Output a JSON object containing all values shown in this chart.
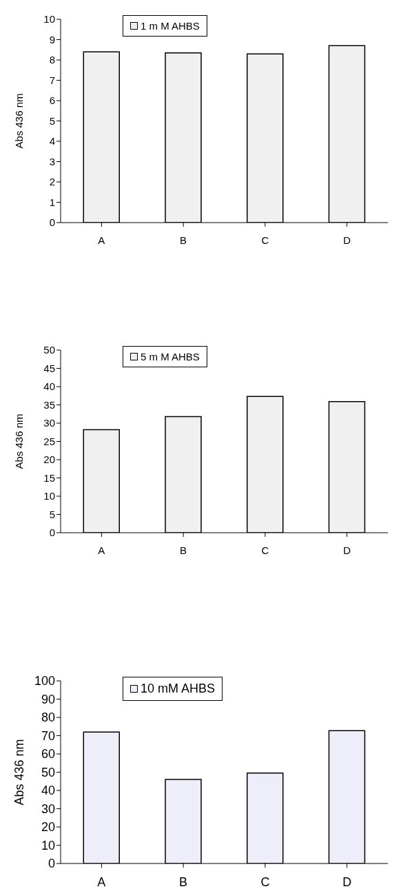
{
  "chart_data": [
    {
      "type": "bar",
      "categories": [
        "A",
        "B",
        "C",
        "D"
      ],
      "series": [
        {
          "name": "1 m M  AHBS",
          "color": "#f0f0f0",
          "values": [
            8.4,
            8.35,
            8.3,
            8.7
          ]
        }
      ],
      "ylabel": "Abs 436 nm",
      "ylim": [
        0,
        10
      ],
      "yticks": [
        0,
        1,
        2,
        3,
        4,
        5,
        6,
        7,
        8,
        9,
        10
      ],
      "grid": false,
      "legend": "top"
    },
    {
      "type": "bar",
      "categories": [
        "A",
        "B",
        "C",
        "D"
      ],
      "series": [
        {
          "name": "5 m M  AHBS",
          "color": "#f0f0f0",
          "values": [
            28.2,
            31.8,
            37.3,
            35.9
          ]
        }
      ],
      "ylabel": "Abs 436 nm",
      "ylim": [
        0,
        50
      ],
      "yticks": [
        0,
        5,
        10,
        15,
        20,
        25,
        30,
        35,
        40,
        45,
        50
      ],
      "grid": false,
      "legend": "top"
    },
    {
      "type": "bar",
      "categories": [
        "A",
        "B",
        "C",
        "D"
      ],
      "series": [
        {
          "name": "10 mM AHBS",
          "color": "#eeeefa",
          "values": [
            72,
            46,
            49.5,
            72.7
          ]
        }
      ],
      "ylabel": "Abs 436 nm",
      "ylim": [
        0,
        100
      ],
      "yticks": [
        0,
        10,
        20,
        30,
        40,
        50,
        60,
        70,
        80,
        90,
        100
      ],
      "grid": false,
      "legend": "top"
    }
  ]
}
